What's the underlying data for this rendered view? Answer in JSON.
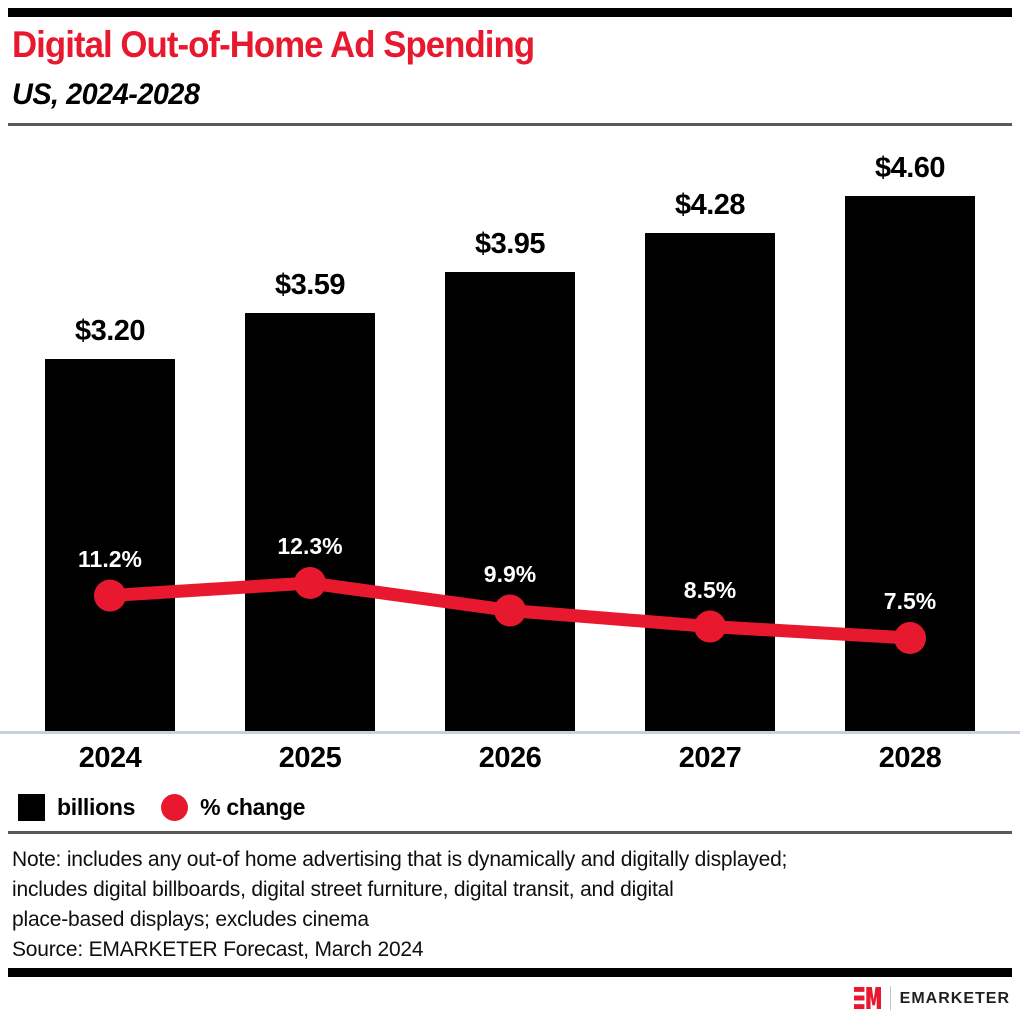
{
  "header": {
    "title": "Digital Out-of-Home Ad Spending",
    "subtitle": "US, 2024-2028"
  },
  "chart_data": {
    "type": "bar",
    "subtype": "bar-line-combo",
    "title": "Digital Out-of-Home Ad Spending",
    "subtitle": "US, 2024-2028",
    "categories": [
      "2024",
      "2025",
      "2026",
      "2027",
      "2028"
    ],
    "series": [
      {
        "name": "billions",
        "type": "bar",
        "color": "#000000",
        "values": [
          3.2,
          3.59,
          3.95,
          4.28,
          4.6
        ],
        "labels": [
          "$3.20",
          "$3.59",
          "$3.95",
          "$4.28",
          "$4.60"
        ]
      },
      {
        "name": "% change",
        "type": "line",
        "color": "#e8192e",
        "values": [
          11.2,
          12.3,
          9.9,
          8.5,
          7.5
        ],
        "labels": [
          "11.2%",
          "12.3%",
          "9.9%",
          "8.5%",
          "7.5%"
        ]
      }
    ],
    "xlabel": "",
    "ylabel": "",
    "bar_ylim": [
      0,
      5.1
    ],
    "line_ylim": [
      0,
      14
    ],
    "grid": false,
    "legend_position": "bottom-left"
  },
  "legend": {
    "items": [
      {
        "label": "billions",
        "swatch": "square",
        "color": "#000000"
      },
      {
        "label": "% change",
        "swatch": "circle",
        "color": "#e8192e"
      }
    ]
  },
  "notes": {
    "lines": [
      "Note: includes any out-of home advertising that is dynamically and digitally displayed;",
      "includes digital billboards, digital street furniture, digital transit, and digital",
      "place-based displays; excludes cinema",
      "Source: EMARKETER Forecast, March 2024"
    ]
  },
  "footer": {
    "brand": "EMARKETER"
  },
  "colors": {
    "accent_red": "#e8192e",
    "bar_black": "#000000",
    "axis_line": "#c9cfe2",
    "rule_gray": "#58595b"
  }
}
